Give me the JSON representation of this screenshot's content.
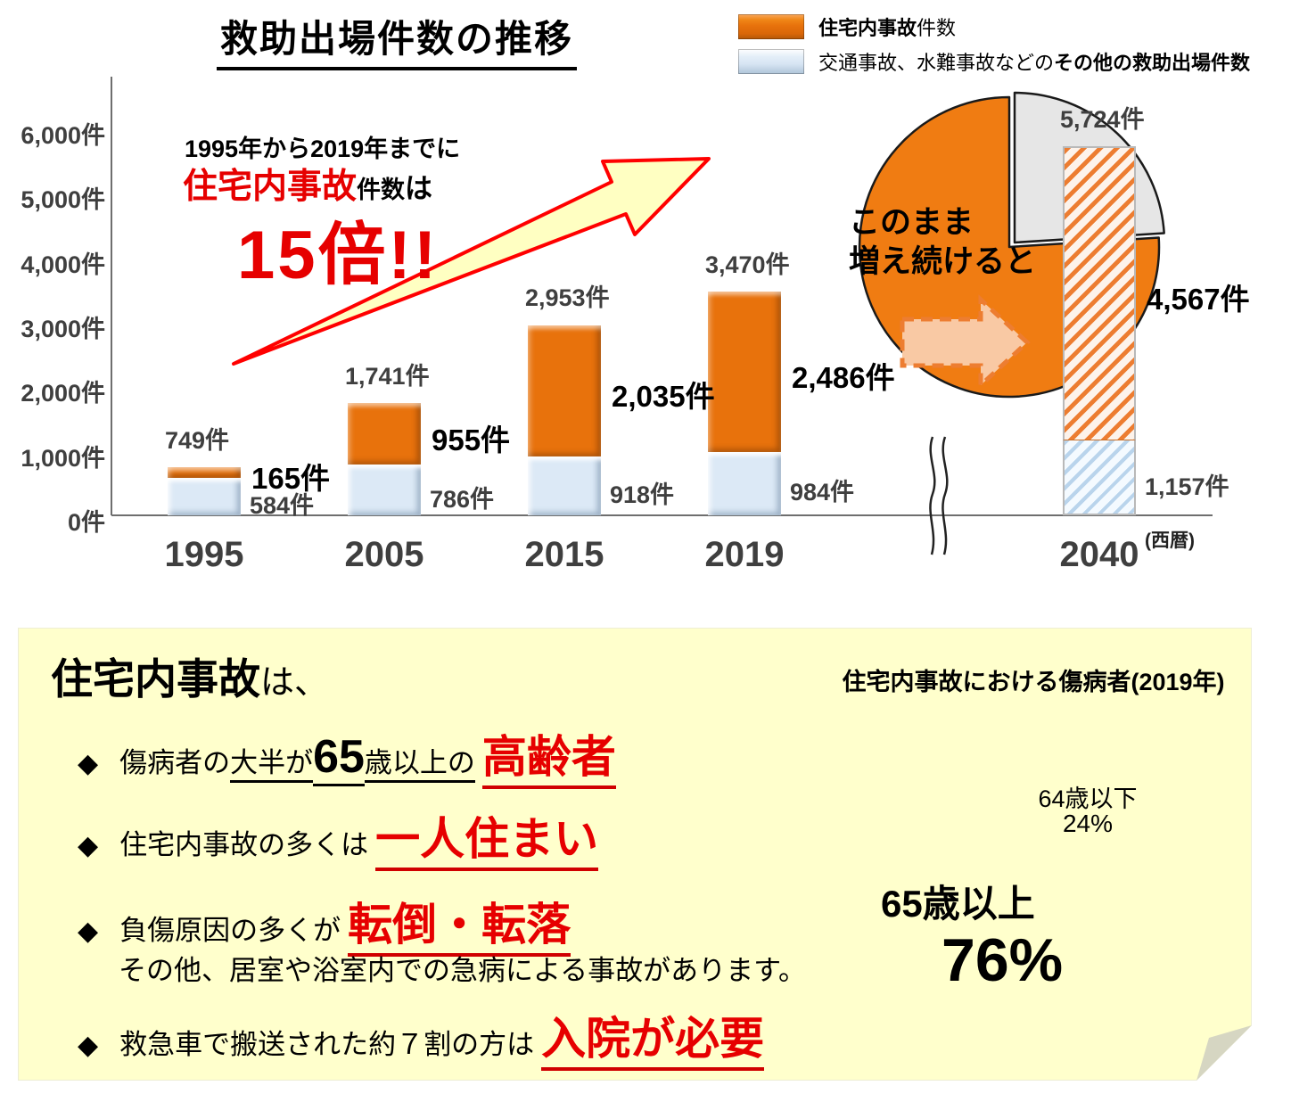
{
  "chart": {
    "title": "救助出場件数の推移",
    "legend": {
      "home_bold": "住宅内事故",
      "home_rest": "件数",
      "other_plain": "交通事故、水難事故などの",
      "other_bold": "その他の救助出場件数"
    },
    "y_ticks": [
      "6,000件",
      "5,000件",
      "4,000件",
      "3,000件",
      "2,000件",
      "1,000件",
      "0件"
    ],
    "x_axis_unit": "(西暦)",
    "growth_note": {
      "line1": "1995年から2019年までに",
      "red": "住宅内事故",
      "black_small": "件数",
      "suffix": "は",
      "big": "15倍!!"
    },
    "projection_note": {
      "line1": "このまま",
      "line2": "増え続けると"
    }
  },
  "chart_data": {
    "type": "bar",
    "stacked": true,
    "title": "救助出場件数の推移",
    "categories": [
      "1995",
      "2005",
      "2015",
      "2019",
      "2040"
    ],
    "series": [
      {
        "name": "住宅内事故件数",
        "color": "#E8720C",
        "values": [
          165,
          955,
          2035,
          2486,
          4567
        ]
      },
      {
        "name": "交通事故、水難事故などのその他の救助出場件数",
        "color": "#DCE9F6",
        "values": [
          584,
          786,
          918,
          984,
          1157
        ]
      }
    ],
    "totals": [
      749,
      1741,
      2953,
      3470,
      5724
    ],
    "bar_labels": {
      "totals": [
        "749件",
        "1,741件",
        "2,953件",
        "3,470件",
        "5,724件"
      ],
      "home": [
        "165件",
        "955件",
        "2,035件",
        "2,486件",
        "4,567件"
      ],
      "other": [
        "584件",
        "786件",
        "918件",
        "984件",
        "1,157件"
      ]
    },
    "ylim": [
      0,
      6000
    ],
    "ylabel": "件",
    "projected_category": "2040",
    "grid": false,
    "legend_position": "top-right"
  },
  "panel": {
    "heading_bold": "住宅内事故",
    "heading_rest": "は、",
    "bullets": [
      {
        "pre": "傷病者の",
        "u1": "大半が",
        "big": "65",
        "u2": "歳以上の",
        "red": "高齢者"
      },
      {
        "pre": "住宅内事故の多くは",
        "red": "一人住まい"
      },
      {
        "pre": "負傷原因の多くが",
        "red": "転倒・転落",
        "sub": "その他、居室や浴室内での急病による事故があります。"
      },
      {
        "pre": "救急車で搬送された約７割の方は",
        "red": "入院が必要"
      }
    ],
    "pie": {
      "title": "住宅内事故における傷病者(2019年)",
      "chart_data": {
        "type": "pie",
        "slices": [
          {
            "label": "65歳以上",
            "pct_label": "76%",
            "value": 76,
            "color": "#F07C12"
          },
          {
            "label": "64歳以下",
            "pct_label": "24%",
            "value": 24,
            "color": "#E6E6E6"
          }
        ]
      }
    }
  },
  "colors": {
    "home_bar": "#E8720C",
    "other_bar": "#DCE9F6",
    "red_accent": "#E60000",
    "panel_bg": "#FFFFCC",
    "pie_orange": "#F07C12",
    "pie_gray": "#E6E6E6",
    "arrow_fill": "#FFFFC2",
    "dashed_arrow_fill": "#F9C9A4",
    "dashed_arrow_stroke": "#ED7D31"
  }
}
